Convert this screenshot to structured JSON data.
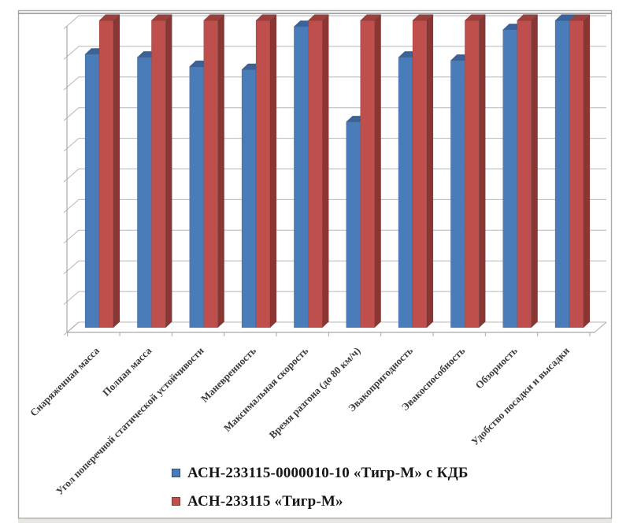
{
  "chart_data": {
    "type": "bar",
    "style": "3d-clustered-column",
    "title": "",
    "xlabel": "",
    "ylabel": "",
    "ylim": [
      0,
      100
    ],
    "y_tick_labels_visible": false,
    "gridlines": true,
    "gridline_intervals": 10,
    "legend_position": "bottom",
    "categories": [
      "Снаряженная масса",
      "Полная масса",
      "Угол поперечной статической устойчивости",
      "Маневренность",
      "Максимальная скорость",
      "Время разгона (до 80 км/ч)",
      "Эвакопригодность",
      "Эвакоспособность",
      "Обзорность",
      "Удобство посадки и высадки"
    ],
    "series": [
      {
        "name": "АСН-233115-0000010-10 «Тигр-М» с КДБ",
        "color": "#4a7cba",
        "color_top": "#3a6399",
        "color_side": "#2f5179",
        "values": [
          89,
          88,
          85,
          84,
          98,
          67,
          88,
          87,
          97,
          100
        ]
      },
      {
        "name": "АСН-233115 «Тигр-М»",
        "color": "#bf4f4c",
        "color_top": "#9c403d",
        "color_side": "#8a3734",
        "values": [
          100,
          100,
          100,
          100,
          100,
          100,
          100,
          100,
          100,
          100
        ]
      }
    ],
    "colors": {
      "grid": "#b6b6be",
      "axis": "#a8a8b0",
      "chart_border": "#ababab",
      "label_text": "#3a3a3a"
    }
  }
}
